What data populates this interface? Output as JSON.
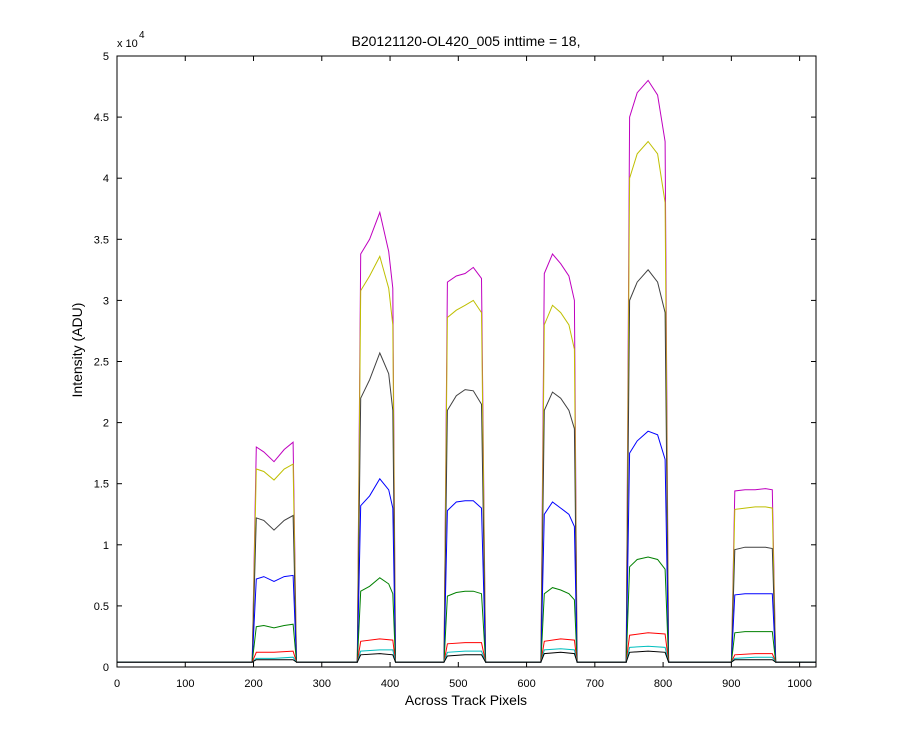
{
  "chart_data": {
    "type": "line",
    "title": "B20121120-OL420_005 inttime = 18,",
    "xlabel": "Across Track Pixels",
    "ylabel": "Intensity (ADU)",
    "y_exponent_prefix": "x 10",
    "y_exponent_power": "4",
    "xlim": [
      0,
      1024
    ],
    "ylim": [
      0,
      5
    ],
    "xticks": [
      0,
      100,
      200,
      300,
      400,
      500,
      600,
      700,
      800,
      900,
      1000
    ],
    "yticks": [
      0,
      0.5,
      1,
      1.5,
      2,
      2.5,
      3,
      3.5,
      4,
      4.5,
      5
    ],
    "ytick_labels": [
      "0",
      "0.5",
      "1",
      "1.5",
      "2",
      "2.5",
      "3",
      "3.5",
      "4",
      "4.5",
      "5"
    ],
    "grid": false,
    "baseline": 0.04,
    "windows": [
      {
        "start": 198,
        "end": 263
      },
      {
        "start": 352,
        "end": 408
      },
      {
        "start": 479,
        "end": 540
      },
      {
        "start": 621,
        "end": 674
      },
      {
        "start": 746,
        "end": 808
      },
      {
        "start": 900,
        "end": 965
      }
    ],
    "series": [
      {
        "color": "#bf00bf",
        "windows": [
          [
            [
              204,
              1.8
            ],
            [
              215,
              1.76
            ],
            [
              230,
              1.68
            ],
            [
              245,
              1.78
            ],
            [
              258,
              1.84
            ]
          ],
          [
            [
              357,
              3.38
            ],
            [
              370,
              3.5
            ],
            [
              385,
              3.72
            ],
            [
              398,
              3.4
            ],
            [
              404,
              3.1
            ]
          ],
          [
            [
              484,
              3.15
            ],
            [
              497,
              3.2
            ],
            [
              510,
              3.22
            ],
            [
              522,
              3.27
            ],
            [
              534,
              3.18
            ]
          ],
          [
            [
              626,
              3.22
            ],
            [
              638,
              3.38
            ],
            [
              650,
              3.3
            ],
            [
              662,
              3.2
            ],
            [
              670,
              3.0
            ]
          ],
          [
            [
              751,
              4.5
            ],
            [
              762,
              4.7
            ],
            [
              778,
              4.8
            ],
            [
              792,
              4.68
            ],
            [
              803,
              4.3
            ]
          ],
          [
            [
              905,
              1.44
            ],
            [
              920,
              1.45
            ],
            [
              935,
              1.45
            ],
            [
              950,
              1.46
            ],
            [
              960,
              1.45
            ]
          ]
        ]
      },
      {
        "color": "#bfbf00",
        "windows": [
          [
            [
              204,
              1.62
            ],
            [
              215,
              1.6
            ],
            [
              230,
              1.53
            ],
            [
              245,
              1.62
            ],
            [
              258,
              1.66
            ]
          ],
          [
            [
              357,
              3.08
            ],
            [
              370,
              3.2
            ],
            [
              385,
              3.36
            ],
            [
              398,
              3.1
            ],
            [
              404,
              2.8
            ]
          ],
          [
            [
              484,
              2.86
            ],
            [
              497,
              2.92
            ],
            [
              510,
              2.96
            ],
            [
              522,
              3.0
            ],
            [
              534,
              2.9
            ]
          ],
          [
            [
              626,
              2.8
            ],
            [
              638,
              2.96
            ],
            [
              650,
              2.9
            ],
            [
              662,
              2.8
            ],
            [
              670,
              2.6
            ]
          ],
          [
            [
              751,
              4.0
            ],
            [
              762,
              4.2
            ],
            [
              778,
              4.3
            ],
            [
              792,
              4.2
            ],
            [
              803,
              3.8
            ]
          ],
          [
            [
              905,
              1.29
            ],
            [
              920,
              1.3
            ],
            [
              935,
              1.31
            ],
            [
              950,
              1.31
            ],
            [
              960,
              1.3
            ]
          ]
        ]
      },
      {
        "color": "#404040",
        "windows": [
          [
            [
              204,
              1.22
            ],
            [
              215,
              1.2
            ],
            [
              230,
              1.12
            ],
            [
              245,
              1.2
            ],
            [
              258,
              1.24
            ]
          ],
          [
            [
              357,
              2.2
            ],
            [
              370,
              2.35
            ],
            [
              385,
              2.57
            ],
            [
              398,
              2.4
            ],
            [
              404,
              2.1
            ]
          ],
          [
            [
              484,
              2.1
            ],
            [
              497,
              2.22
            ],
            [
              510,
              2.27
            ],
            [
              522,
              2.26
            ],
            [
              534,
              2.15
            ]
          ],
          [
            [
              626,
              2.1
            ],
            [
              638,
              2.25
            ],
            [
              650,
              2.2
            ],
            [
              662,
              2.1
            ],
            [
              670,
              1.95
            ]
          ],
          [
            [
              751,
              3.0
            ],
            [
              762,
              3.15
            ],
            [
              778,
              3.25
            ],
            [
              792,
              3.15
            ],
            [
              803,
              2.9
            ]
          ],
          [
            [
              905,
              0.96
            ],
            [
              920,
              0.98
            ],
            [
              935,
              0.98
            ],
            [
              950,
              0.98
            ],
            [
              960,
              0.97
            ]
          ]
        ]
      },
      {
        "color": "#0000ff",
        "windows": [
          [
            [
              204,
              0.72
            ],
            [
              215,
              0.74
            ],
            [
              230,
              0.7
            ],
            [
              245,
              0.74
            ],
            [
              258,
              0.75
            ]
          ],
          [
            [
              357,
              1.32
            ],
            [
              370,
              1.4
            ],
            [
              385,
              1.54
            ],
            [
              398,
              1.45
            ],
            [
              404,
              1.3
            ]
          ],
          [
            [
              484,
              1.28
            ],
            [
              497,
              1.35
            ],
            [
              510,
              1.36
            ],
            [
              522,
              1.36
            ],
            [
              534,
              1.3
            ]
          ],
          [
            [
              626,
              1.25
            ],
            [
              638,
              1.35
            ],
            [
              650,
              1.3
            ],
            [
              662,
              1.25
            ],
            [
              670,
              1.15
            ]
          ],
          [
            [
              751,
              1.75
            ],
            [
              762,
              1.85
            ],
            [
              778,
              1.93
            ],
            [
              792,
              1.9
            ],
            [
              803,
              1.7
            ]
          ],
          [
            [
              905,
              0.59
            ],
            [
              920,
              0.6
            ],
            [
              935,
              0.6
            ],
            [
              950,
              0.6
            ],
            [
              960,
              0.6
            ]
          ]
        ]
      },
      {
        "color": "#008000",
        "windows": [
          [
            [
              204,
              0.33
            ],
            [
              215,
              0.34
            ],
            [
              230,
              0.32
            ],
            [
              245,
              0.34
            ],
            [
              258,
              0.35
            ]
          ],
          [
            [
              357,
              0.62
            ],
            [
              370,
              0.66
            ],
            [
              385,
              0.73
            ],
            [
              398,
              0.68
            ],
            [
              404,
              0.6
            ]
          ],
          [
            [
              484,
              0.58
            ],
            [
              497,
              0.61
            ],
            [
              510,
              0.62
            ],
            [
              522,
              0.62
            ],
            [
              534,
              0.6
            ]
          ],
          [
            [
              626,
              0.6
            ],
            [
              638,
              0.65
            ],
            [
              650,
              0.63
            ],
            [
              662,
              0.6
            ],
            [
              670,
              0.55
            ]
          ],
          [
            [
              751,
              0.82
            ],
            [
              762,
              0.88
            ],
            [
              778,
              0.9
            ],
            [
              792,
              0.88
            ],
            [
              803,
              0.8
            ]
          ],
          [
            [
              905,
              0.28
            ],
            [
              920,
              0.29
            ],
            [
              935,
              0.29
            ],
            [
              950,
              0.29
            ],
            [
              960,
              0.29
            ]
          ]
        ]
      },
      {
        "color": "#ff0000",
        "windows": [
          [
            [
              204,
              0.12
            ],
            [
              230,
              0.12
            ],
            [
              258,
              0.13
            ]
          ],
          [
            [
              357,
              0.21
            ],
            [
              385,
              0.23
            ],
            [
              404,
              0.22
            ]
          ],
          [
            [
              484,
              0.19
            ],
            [
              510,
              0.2
            ],
            [
              534,
              0.2
            ]
          ],
          [
            [
              626,
              0.21
            ],
            [
              650,
              0.23
            ],
            [
              670,
              0.22
            ]
          ],
          [
            [
              751,
              0.26
            ],
            [
              778,
              0.28
            ],
            [
              803,
              0.27
            ]
          ],
          [
            [
              905,
              0.1
            ],
            [
              935,
              0.11
            ],
            [
              960,
              0.11
            ]
          ]
        ]
      },
      {
        "color": "#00bfbf",
        "windows": [
          [
            [
              204,
              0.07
            ],
            [
              230,
              0.07
            ],
            [
              258,
              0.08
            ]
          ],
          [
            [
              357,
              0.13
            ],
            [
              385,
              0.14
            ],
            [
              404,
              0.14
            ]
          ],
          [
            [
              484,
              0.12
            ],
            [
              510,
              0.13
            ],
            [
              534,
              0.13
            ]
          ],
          [
            [
              626,
              0.14
            ],
            [
              650,
              0.15
            ],
            [
              670,
              0.14
            ]
          ],
          [
            [
              751,
              0.16
            ],
            [
              778,
              0.17
            ],
            [
              803,
              0.16
            ]
          ],
          [
            [
              905,
              0.07
            ],
            [
              935,
              0.08
            ],
            [
              960,
              0.08
            ]
          ]
        ]
      },
      {
        "color": "#000000",
        "windows": [
          [
            [
              204,
              0.06
            ],
            [
              230,
              0.06
            ],
            [
              258,
              0.06
            ]
          ],
          [
            [
              357,
              0.1
            ],
            [
              385,
              0.11
            ],
            [
              404,
              0.1
            ]
          ],
          [
            [
              484,
              0.09
            ],
            [
              510,
              0.1
            ],
            [
              534,
              0.1
            ]
          ],
          [
            [
              626,
              0.11
            ],
            [
              650,
              0.12
            ],
            [
              670,
              0.11
            ]
          ],
          [
            [
              751,
              0.12
            ],
            [
              778,
              0.13
            ],
            [
              803,
              0.12
            ]
          ],
          [
            [
              905,
              0.06
            ],
            [
              935,
              0.06
            ],
            [
              960,
              0.06
            ]
          ]
        ]
      }
    ]
  }
}
